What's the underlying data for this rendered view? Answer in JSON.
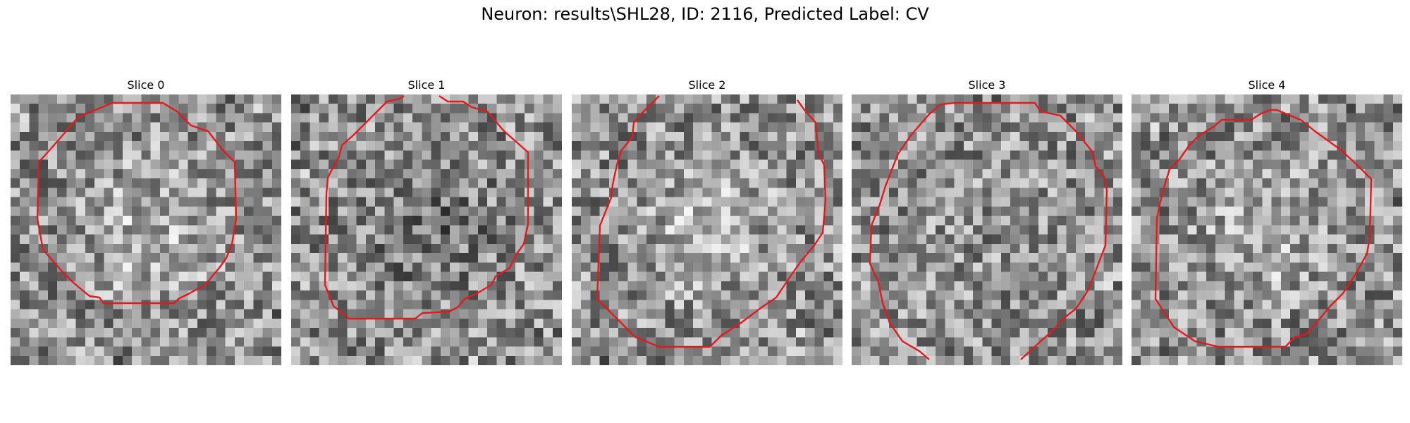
{
  "figure": {
    "suptitle": "Neuron: results\\SHL28, ID: 2116, Predicted Label: CV",
    "contour_color": "#e31a1c",
    "colormap": "gray",
    "panels": [
      {
        "title": "Slice 0",
        "region": "bright-center",
        "seed": 11
      },
      {
        "title": "Slice 1",
        "region": "dark-center",
        "seed": 23
      },
      {
        "title": "Slice 2",
        "region": "bright-center",
        "seed": 37
      },
      {
        "title": "Slice 3",
        "region": "neutral",
        "seed": 41
      },
      {
        "title": "Slice 4",
        "region": "bright-center",
        "seed": 53
      }
    ]
  }
}
